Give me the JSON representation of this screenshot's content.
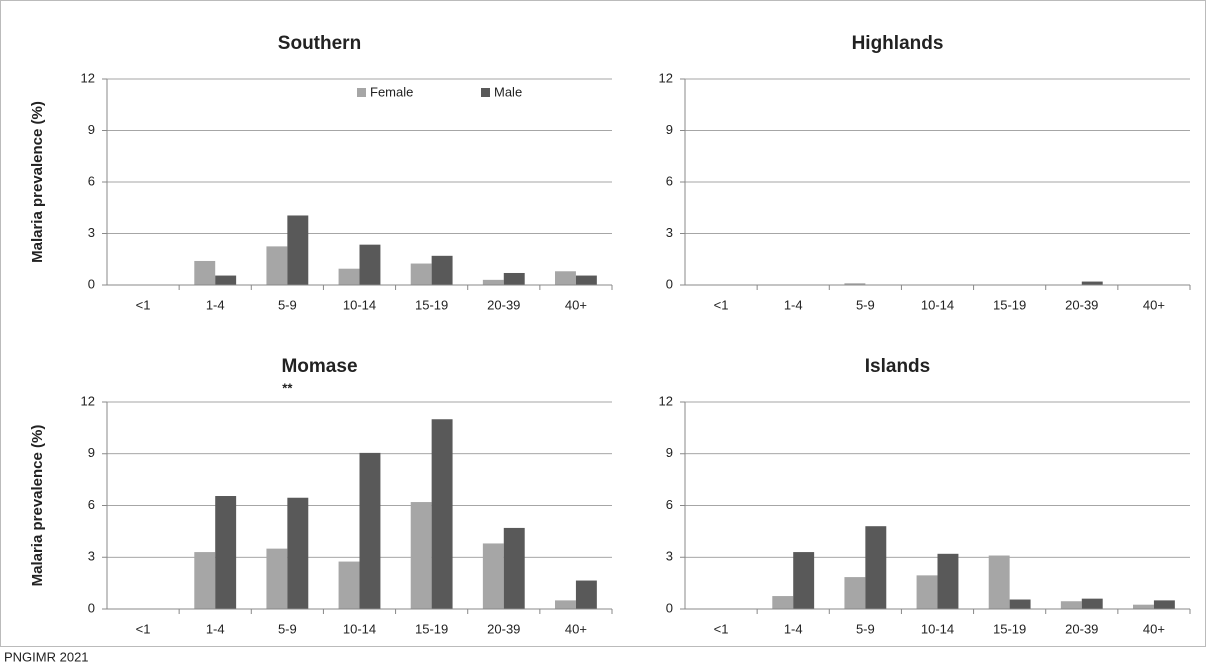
{
  "chart_data": [
    {
      "type": "bar",
      "title": "Southern",
      "ylabel": "Malaria prevalence (%)",
      "legend": "top-center",
      "categories": [
        "<1",
        "1-4",
        "5-9",
        "10-14",
        "15-19",
        "20-39",
        "40+"
      ],
      "series": [
        {
          "name": "Female",
          "color": "#a6a6a6",
          "values": [
            0,
            1.4,
            2.25,
            0.95,
            1.25,
            0.3,
            0.8
          ]
        },
        {
          "name": "Male",
          "color": "#595959",
          "values": [
            0,
            0.55,
            4.05,
            2.35,
            1.7,
            0.7,
            0.55
          ]
        }
      ],
      "ylim": [
        0,
        12
      ],
      "yticks": [
        0,
        3,
        6,
        9,
        12
      ],
      "grid": true
    },
    {
      "type": "bar",
      "title": "Highlands",
      "categories": [
        "<1",
        "1-4",
        "5-9",
        "10-14",
        "15-19",
        "20-39",
        "40+"
      ],
      "series": [
        {
          "name": "Female",
          "color": "#a6a6a6",
          "values": [
            0,
            0,
            0.1,
            0,
            0,
            0,
            0
          ]
        },
        {
          "name": "Male",
          "color": "#595959",
          "values": [
            0,
            0,
            0,
            0,
            0,
            0.2,
            0
          ]
        }
      ],
      "ylim": [
        0,
        12
      ],
      "yticks": [
        0,
        3,
        6,
        9,
        12
      ],
      "grid": true
    },
    {
      "type": "bar",
      "title": "Momase",
      "ylabel": "Malaria prevalence (%)",
      "annotation": "**",
      "categories": [
        "<1",
        "1-4",
        "5-9",
        "10-14",
        "15-19",
        "20-39",
        "40+"
      ],
      "series": [
        {
          "name": "Female",
          "color": "#a6a6a6",
          "values": [
            0,
            3.3,
            3.5,
            2.75,
            6.2,
            3.8,
            0.5
          ]
        },
        {
          "name": "Male",
          "color": "#595959",
          "values": [
            0,
            6.55,
            6.45,
            9.05,
            11,
            4.7,
            1.65
          ]
        }
      ],
      "ylim": [
        0,
        12
      ],
      "yticks": [
        0,
        3,
        6,
        9,
        12
      ],
      "grid": true
    },
    {
      "type": "bar",
      "title": "Islands",
      "categories": [
        "<1",
        "1-4",
        "5-9",
        "10-14",
        "15-19",
        "20-39",
        "40+"
      ],
      "series": [
        {
          "name": "Female",
          "color": "#a6a6a6",
          "values": [
            0,
            0.75,
            1.85,
            1.95,
            3.1,
            0.45,
            0.25
          ]
        },
        {
          "name": "Male",
          "color": "#595959",
          "values": [
            0,
            3.3,
            4.8,
            3.2,
            0.55,
            0.6,
            0.5
          ]
        }
      ],
      "ylim": [
        0,
        12
      ],
      "yticks": [
        0,
        3,
        6,
        9,
        12
      ],
      "grid": true
    }
  ],
  "source": "PNGIMR 2021"
}
